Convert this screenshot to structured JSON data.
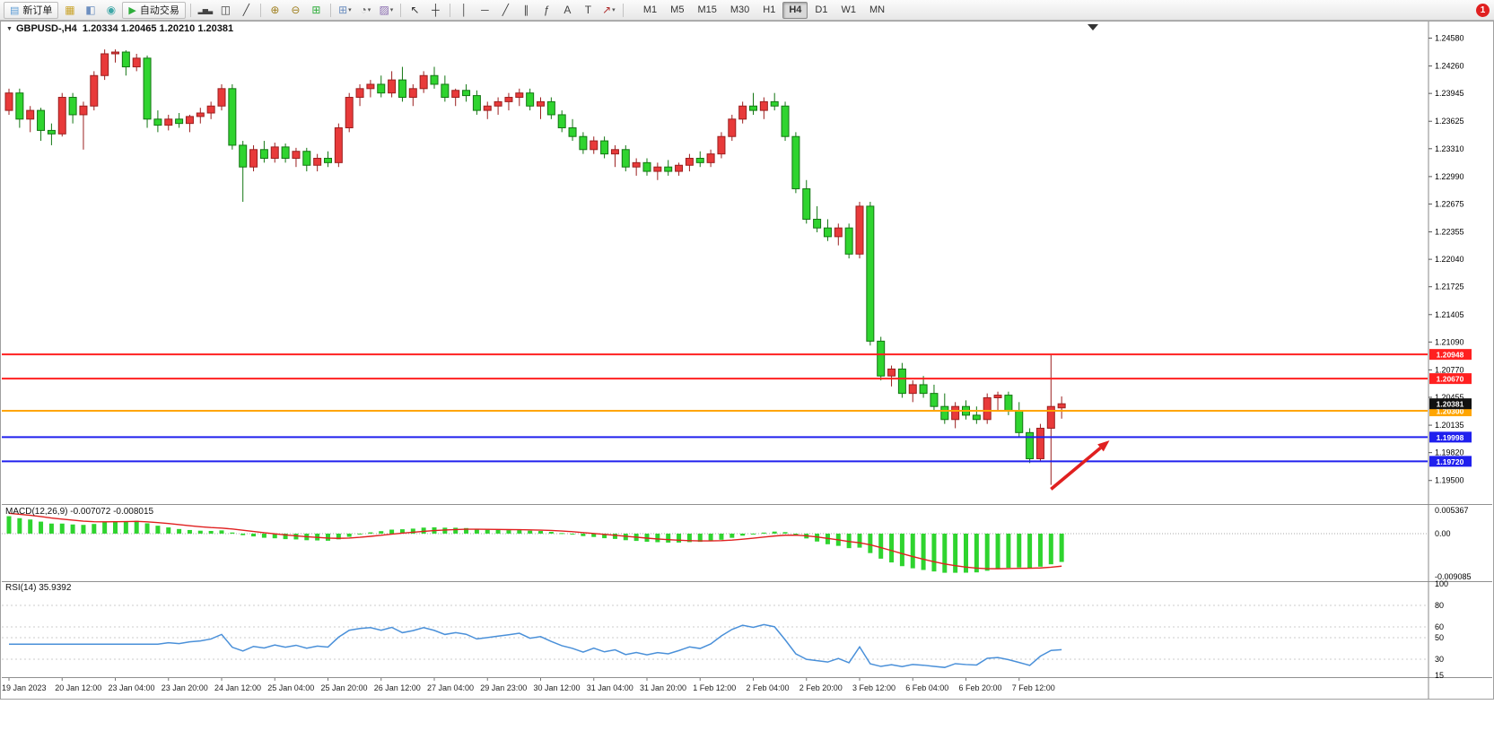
{
  "toolbar": {
    "new_order_label": "新订单",
    "auto_trading_label": "自动交易",
    "notification_badge": "1",
    "timeframes": [
      "M1",
      "M5",
      "M15",
      "M30",
      "H1",
      "H4",
      "D1",
      "W1",
      "MN"
    ],
    "active_timeframe": "H4",
    "items": [
      {
        "t": "btn",
        "name": "new-order-button",
        "glyph": "▤",
        "glyph_color": "#5b9bd5",
        "label": "新订单"
      },
      {
        "t": "icon",
        "name": "market-watch-icon",
        "glyph": "▦",
        "glyph_color": "#c9a227"
      },
      {
        "t": "icon",
        "name": "data-window-icon",
        "glyph": "◧",
        "glyph_color": "#6d8fc0"
      },
      {
        "t": "icon",
        "name": "navigator-icon",
        "glyph": "◉",
        "glyph_color": "#3fa7a7"
      },
      {
        "t": "btn",
        "name": "auto-trading-button",
        "glyph": "▶",
        "glyph_color": "#2fae3c",
        "label": "自动交易"
      },
      {
        "t": "sep"
      },
      {
        "t": "icon",
        "name": "bar-chart-type-icon",
        "glyph": "▂▅▃",
        "glyph_color": "#444444",
        "small": true
      },
      {
        "t": "icon",
        "name": "candlestick-type-icon",
        "glyph": "◫",
        "glyph_color": "#444444"
      },
      {
        "t": "icon",
        "name": "line-chart-type-icon",
        "glyph": "╱",
        "glyph_color": "#444444"
      },
      {
        "t": "sep"
      },
      {
        "t": "icon",
        "name": "zoom-in-icon",
        "glyph": "⊕",
        "glyph_color": "#a08020"
      },
      {
        "t": "icon",
        "name": "zoom-out-icon",
        "glyph": "⊖",
        "glyph_color": "#a08020"
      },
      {
        "t": "icon",
        "name": "tile-windows-icon",
        "glyph": "⊞",
        "glyph_color": "#2fae3c"
      },
      {
        "t": "sep"
      },
      {
        "t": "icon",
        "name": "new-chart-icon",
        "glyph": "⊞",
        "glyph_color": "#6d8fc0",
        "caret": true
      },
      {
        "t": "icon",
        "name": "profiles-icon",
        "glyph": "◔",
        "glyph_color": "#666666",
        "caret": true
      },
      {
        "t": "icon",
        "name": "templates-icon",
        "glyph": "▨",
        "glyph_color": "#8a6db0",
        "caret": true
      },
      {
        "t": "sep"
      },
      {
        "t": "icon",
        "name": "cursor-icon",
        "glyph": "↖",
        "glyph_color": "#333333"
      },
      {
        "t": "icon",
        "name": "crosshair-icon",
        "glyph": "┼",
        "glyph_color": "#333333"
      },
      {
        "t": "sep"
      },
      {
        "t": "icon",
        "name": "vertical-line-icon",
        "glyph": "│",
        "glyph_color": "#444444"
      },
      {
        "t": "icon",
        "name": "horizontal-line-icon",
        "glyph": "─",
        "glyph_color": "#444444"
      },
      {
        "t": "icon",
        "name": "trendline-icon",
        "glyph": "╱",
        "glyph_color": "#444444"
      },
      {
        "t": "icon",
        "name": "channel-icon",
        "glyph": "∥",
        "glyph_color": "#444444"
      },
      {
        "t": "icon",
        "name": "fibonacci-icon",
        "glyph": "ƒ",
        "glyph_color": "#444444"
      },
      {
        "t": "icon",
        "name": "text-icon",
        "glyph": "A",
        "glyph_color": "#444444"
      },
      {
        "t": "icon",
        "name": "label-icon",
        "glyph": "T",
        "glyph_color": "#444444"
      },
      {
        "t": "icon",
        "name": "arrows-icon",
        "glyph": "↗",
        "glyph_color": "#b03030",
        "caret": true
      },
      {
        "t": "sep"
      }
    ]
  },
  "chart_header": {
    "collapse_icon": "▼",
    "info_line": "GBPUSD-,H4  1.20334 1.20465 1.20210 1.20381",
    "symbol": "GBPUSD-",
    "period": "H4",
    "open": "1.20334",
    "high": "1.20465",
    "low": "1.20210",
    "close": "1.20381"
  },
  "macd_panel": {
    "label": "MACD(12,26,9) -0.007072 -0.008015"
  },
  "rsi_panel": {
    "label": "RSI(14) 35.9392"
  },
  "chart_data": {
    "type": "candlestick",
    "symbol": "GBPUSD-",
    "timeframe": "H4",
    "up_color": "#e83a3a",
    "down_color": "#2fd42f",
    "up_stroke": "#9b1f1f",
    "down_stroke": "#13761 3",
    "visible_range": {
      "max": 1.2475,
      "min": 1.1925
    },
    "price_axis_ticks": [
      "1.24580",
      "1.24260",
      "1.23945",
      "1.23625",
      "1.23310",
      "1.22990",
      "1.22675",
      "1.22355",
      "1.22040",
      "1.21725",
      "1.21405",
      "1.21090",
      "1.20770",
      "1.20455",
      "1.20135",
      "1.19820",
      "1.19500"
    ],
    "time_labels": [
      "19 Jan 2023",
      "20 Jan 12:00",
      "23 Jan 04:00",
      "23 Jan 20:00",
      "24 Jan 12:00",
      "25 Jan 04:00",
      "25 Jan 20:00",
      "26 Jan 12:00",
      "27 Jan 04:00",
      "29 Jan 23:00",
      "30 Jan 12:00",
      "31 Jan 04:00",
      "31 Jan 20:00",
      "1 Feb 12:00",
      "2 Feb 04:00",
      "2 Feb 20:00",
      "3 Feb 12:00",
      "6 Feb 04:00",
      "6 Feb 20:00",
      "7 Feb 12:00"
    ],
    "candles_ohlc": [
      [
        1.2375,
        1.24,
        1.237,
        1.2395
      ],
      [
        1.2395,
        1.24,
        1.2355,
        1.2365
      ],
      [
        1.2365,
        1.238,
        1.235,
        1.2375
      ],
      [
        1.2375,
        1.2378,
        1.234,
        1.2352
      ],
      [
        1.2352,
        1.236,
        1.2335,
        1.2348
      ],
      [
        1.2348,
        1.2395,
        1.2345,
        1.239
      ],
      [
        1.239,
        1.2395,
        1.236,
        1.237
      ],
      [
        1.237,
        1.2385,
        1.233,
        1.238
      ],
      [
        1.238,
        1.242,
        1.2375,
        1.2415
      ],
      [
        1.2415,
        1.2445,
        1.241,
        1.244
      ],
      [
        1.244,
        1.2445,
        1.243,
        1.2442
      ],
      [
        1.2442,
        1.2444,
        1.2415,
        1.2425
      ],
      [
        1.2425,
        1.244,
        1.242,
        1.2435
      ],
      [
        1.2435,
        1.2438,
        1.2355,
        1.2365
      ],
      [
        1.2365,
        1.2375,
        1.235,
        1.2358
      ],
      [
        1.2358,
        1.237,
        1.2352,
        1.2365
      ],
      [
        1.2365,
        1.2372,
        1.2355,
        1.236
      ],
      [
        1.236,
        1.237,
        1.235,
        1.2368
      ],
      [
        1.2368,
        1.2378,
        1.236,
        1.2372
      ],
      [
        1.2372,
        1.2385,
        1.2365,
        1.238
      ],
      [
        1.238,
        1.2405,
        1.2375,
        1.24
      ],
      [
        1.24,
        1.2405,
        1.233,
        1.2335
      ],
      [
        1.2335,
        1.234,
        1.227,
        1.231
      ],
      [
        1.231,
        1.2335,
        1.2305,
        1.233
      ],
      [
        1.233,
        1.234,
        1.2315,
        1.232
      ],
      [
        1.232,
        1.2338,
        1.2315,
        1.2333
      ],
      [
        1.2333,
        1.2337,
        1.2315,
        1.232
      ],
      [
        1.232,
        1.2332,
        1.231,
        1.2328
      ],
      [
        1.2328,
        1.2332,
        1.2305,
        1.2312
      ],
      [
        1.2312,
        1.2325,
        1.2305,
        1.232
      ],
      [
        1.232,
        1.2328,
        1.231,
        1.2315
      ],
      [
        1.2315,
        1.236,
        1.231,
        1.2355
      ],
      [
        1.2355,
        1.2395,
        1.235,
        1.239
      ],
      [
        1.239,
        1.2405,
        1.238,
        1.24
      ],
      [
        1.24,
        1.241,
        1.239,
        1.2405
      ],
      [
        1.2405,
        1.2415,
        1.239,
        1.2395
      ],
      [
        1.2395,
        1.242,
        1.239,
        1.241
      ],
      [
        1.241,
        1.2425,
        1.2385,
        1.239
      ],
      [
        1.239,
        1.2405,
        1.238,
        1.24
      ],
      [
        1.24,
        1.242,
        1.2395,
        1.2415
      ],
      [
        1.2415,
        1.2425,
        1.24,
        1.2405
      ],
      [
        1.2405,
        1.2415,
        1.2385,
        1.239
      ],
      [
        1.239,
        1.24,
        1.238,
        1.2398
      ],
      [
        1.2398,
        1.2405,
        1.2385,
        1.2392
      ],
      [
        1.2392,
        1.2398,
        1.237,
        1.2375
      ],
      [
        1.2375,
        1.2385,
        1.2365,
        1.238
      ],
      [
        1.238,
        1.239,
        1.237,
        1.2385
      ],
      [
        1.2385,
        1.2395,
        1.2375,
        1.239
      ],
      [
        1.239,
        1.24,
        1.238,
        1.2395
      ],
      [
        1.2395,
        1.24,
        1.2375,
        1.238
      ],
      [
        1.238,
        1.239,
        1.2365,
        1.2385
      ],
      [
        1.2385,
        1.239,
        1.2365,
        1.237
      ],
      [
        1.237,
        1.2375,
        1.235,
        1.2355
      ],
      [
        1.2355,
        1.2365,
        1.234,
        1.2345
      ],
      [
        1.2345,
        1.235,
        1.2325,
        1.233
      ],
      [
        1.233,
        1.2345,
        1.2325,
        1.234
      ],
      [
        1.234,
        1.2345,
        1.232,
        1.2325
      ],
      [
        1.2325,
        1.2335,
        1.231,
        1.233
      ],
      [
        1.233,
        1.2335,
        1.2305,
        1.231
      ],
      [
        1.231,
        1.232,
        1.23,
        1.2315
      ],
      [
        1.2315,
        1.232,
        1.23,
        1.2305
      ],
      [
        1.2305,
        1.2315,
        1.2295,
        1.231
      ],
      [
        1.231,
        1.2318,
        1.23,
        1.2305
      ],
      [
        1.2305,
        1.2315,
        1.23,
        1.2312
      ],
      [
        1.2312,
        1.2325,
        1.2305,
        1.232
      ],
      [
        1.232,
        1.2328,
        1.231,
        1.2315
      ],
      [
        1.2315,
        1.233,
        1.231,
        1.2325
      ],
      [
        1.2325,
        1.235,
        1.232,
        1.2345
      ],
      [
        1.2345,
        1.237,
        1.234,
        1.2365
      ],
      [
        1.2365,
        1.2385,
        1.236,
        1.238
      ],
      [
        1.238,
        1.2395,
        1.237,
        1.2375
      ],
      [
        1.2375,
        1.239,
        1.2365,
        1.2385
      ],
      [
        1.2385,
        1.2395,
        1.2375,
        1.238
      ],
      [
        1.238,
        1.2385,
        1.234,
        1.2345
      ],
      [
        1.2345,
        1.235,
        1.228,
        1.2285
      ],
      [
        1.2285,
        1.2295,
        1.2245,
        1.225
      ],
      [
        1.225,
        1.2265,
        1.2235,
        1.224
      ],
      [
        1.224,
        1.225,
        1.2225,
        1.223
      ],
      [
        1.223,
        1.2245,
        1.222,
        1.224
      ],
      [
        1.224,
        1.2245,
        1.2205,
        1.221
      ],
      [
        1.221,
        1.227,
        1.2205,
        1.2265
      ],
      [
        1.2265,
        1.227,
        1.2105,
        1.211
      ],
      [
        1.211,
        1.2115,
        1.2065,
        1.207
      ],
      [
        1.207,
        1.2082,
        1.2058,
        1.2078
      ],
      [
        1.2078,
        1.2085,
        1.2045,
        1.205
      ],
      [
        1.205,
        1.2065,
        1.204,
        1.206
      ],
      [
        1.206,
        1.207,
        1.2045,
        1.205
      ],
      [
        1.205,
        1.206,
        1.203,
        1.2035
      ],
      [
        1.2035,
        1.205,
        1.2015,
        1.202
      ],
      [
        1.202,
        1.204,
        1.201,
        1.2035
      ],
      [
        1.2035,
        1.2042,
        1.202,
        1.2025
      ],
      [
        1.2025,
        1.2035,
        1.2015,
        1.202
      ],
      [
        1.202,
        1.205,
        1.2015,
        1.2045
      ],
      [
        1.2045,
        1.2052,
        1.203,
        1.2048
      ],
      [
        1.2048,
        1.2052,
        1.2025,
        1.203
      ],
      [
        1.203,
        1.204,
        1.2,
        1.2005
      ],
      [
        1.2005,
        1.201,
        1.197,
        1.1975
      ],
      [
        1.1975,
        1.2015,
        1.1972,
        1.201
      ],
      [
        1.201,
        1.2095,
        1.1945,
        1.2035
      ],
      [
        1.20334,
        1.20465,
        1.2021,
        1.20381
      ]
    ],
    "horizontal_lines": [
      {
        "price": 1.20948,
        "label": "1.20948",
        "color": "#ff2020",
        "width": 2
      },
      {
        "price": 1.2067,
        "label": "1.20670",
        "color": "#ff2020",
        "width": 2
      },
      {
        "price": 1.203,
        "label": "1.20300",
        "color": "#ffa500",
        "width": 2
      },
      {
        "price": 1.19998,
        "label": "1.19998",
        "color": "#2020ee",
        "width": 2
      },
      {
        "price": 1.1972,
        "label": "1.19720",
        "color": "#2020ee",
        "width": 2
      }
    ],
    "current_price": {
      "value": 1.20381,
      "label": "1.20381",
      "box_color": "#111111"
    },
    "annotation_arrow": {
      "from": {
        "index": 98.0,
        "price": 1.194
      },
      "to": {
        "index": 103.5,
        "price": 1.1996
      },
      "color": "#e02020"
    },
    "indicators": [
      {
        "type": "MACD",
        "params": [
          12,
          26,
          9
        ],
        "current_values": [
          "-0.007072",
          "-0.008015"
        ],
        "axis_ticks": [
          "0.005367",
          "0.00",
          "-0.009085"
        ],
        "range": {
          "max": 0.005367,
          "min": -0.009085
        },
        "histogram_color": "#2fd42f",
        "signal_color": "#e02020"
      },
      {
        "type": "RSI",
        "params": [
          14
        ],
        "current_value": "35.9392",
        "axis_ticks": [
          100,
          80,
          60,
          50,
          30,
          15
        ],
        "range": {
          "max": 100,
          "min": 15
        },
        "levels": [
          80,
          60,
          50,
          30
        ],
        "line_color": "#4a90d9"
      }
    ]
  }
}
